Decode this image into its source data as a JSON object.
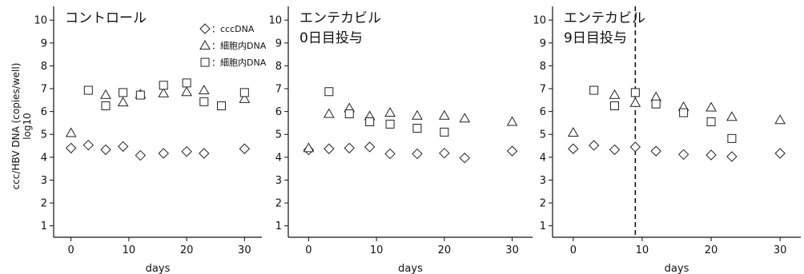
{
  "chart_data": {
    "ylabel_line1": "ccc/HBV DNA (copies/well)",
    "ylabel_line2": "log10",
    "legend": [
      {
        "marker": "diamond",
        "label": "：cccDNA"
      },
      {
        "marker": "triangle",
        "label": "：細胞内DNA"
      },
      {
        "marker": "square",
        "label": "：細胞内DNA"
      }
    ],
    "panels": [
      {
        "type": "scatter",
        "title_lines": [
          "コントロール"
        ],
        "xlabel": "days",
        "xlim": [
          -3,
          33
        ],
        "ylim": [
          0.5,
          10.6
        ],
        "xticks": [
          0,
          10,
          20,
          30
        ],
        "yticks": [
          1,
          2,
          3,
          4,
          5,
          6,
          7,
          8,
          9,
          10
        ],
        "vline": null,
        "series": [
          {
            "marker": "diamond",
            "points": [
              [
                0,
                4.4
              ],
              [
                3,
                4.53
              ],
              [
                6,
                4.33
              ],
              [
                9,
                4.47
              ],
              [
                12,
                4.08
              ],
              [
                16,
                4.17
              ],
              [
                20,
                4.25
              ],
              [
                23,
                4.17
              ],
              [
                30,
                4.37
              ]
            ]
          },
          {
            "marker": "triangle",
            "points": [
              [
                0,
                5.06
              ],
              [
                6,
                6.73
              ],
              [
                9,
                6.4
              ],
              [
                12,
                6.75
              ],
              [
                16,
                6.8
              ],
              [
                20,
                6.85
              ],
              [
                23,
                6.93
              ],
              [
                30,
                6.55
              ]
            ]
          },
          {
            "marker": "square",
            "points": [
              [
                3,
                6.93
              ],
              [
                6,
                6.25
              ],
              [
                9,
                6.83
              ],
              [
                12,
                6.72
              ],
              [
                16,
                7.15
              ],
              [
                20,
                7.25
              ],
              [
                23,
                6.43
              ],
              [
                26,
                6.25
              ],
              [
                30,
                6.83
              ]
            ]
          }
        ]
      },
      {
        "type": "scatter",
        "title_lines": [
          "エンテカビル",
          "0日目投与"
        ],
        "xlabel": "days",
        "xlim": [
          -3,
          33
        ],
        "ylim": [
          0.5,
          10.6
        ],
        "xticks": [
          0,
          10,
          20,
          30
        ],
        "yticks": [
          1,
          2,
          3,
          4,
          5,
          6,
          7,
          8,
          9,
          10
        ],
        "vline": null,
        "series": [
          {
            "marker": "diamond",
            "points": [
              [
                0,
                4.32
              ],
              [
                3,
                4.37
              ],
              [
                6,
                4.4
              ],
              [
                9,
                4.45
              ],
              [
                12,
                4.15
              ],
              [
                16,
                4.15
              ],
              [
                20,
                4.18
              ],
              [
                23,
                3.97
              ],
              [
                30,
                4.27
              ]
            ]
          },
          {
            "marker": "triangle",
            "points": [
              [
                0,
                4.4
              ],
              [
                3,
                5.9
              ],
              [
                6,
                6.15
              ],
              [
                9,
                5.8
              ],
              [
                12,
                5.95
              ],
              [
                16,
                5.82
              ],
              [
                20,
                5.82
              ],
              [
                23,
                5.7
              ],
              [
                30,
                5.55
              ]
            ]
          },
          {
            "marker": "square",
            "points": [
              [
                3,
                6.87
              ],
              [
                6,
                5.9
              ],
              [
                9,
                5.55
              ],
              [
                12,
                5.45
              ],
              [
                16,
                5.27
              ],
              [
                20,
                5.1
              ]
            ]
          }
        ]
      },
      {
        "type": "scatter",
        "title_lines": [
          "エンテカビル",
          "9日目投与"
        ],
        "xlabel": "days",
        "xlim": [
          -3,
          33
        ],
        "ylim": [
          0.5,
          10.6
        ],
        "xticks": [
          0,
          10,
          20,
          30
        ],
        "yticks": [
          1,
          2,
          3,
          4,
          5,
          6,
          7,
          8,
          9,
          10
        ],
        "vline": 9,
        "series": [
          {
            "marker": "diamond",
            "points": [
              [
                0,
                4.37
              ],
              [
                3,
                4.52
              ],
              [
                6,
                4.33
              ],
              [
                9,
                4.45
              ],
              [
                12,
                4.27
              ],
              [
                16,
                4.12
              ],
              [
                20,
                4.1
              ],
              [
                23,
                4.03
              ],
              [
                30,
                4.17
              ]
            ]
          },
          {
            "marker": "triangle",
            "points": [
              [
                0,
                5.08
              ],
              [
                6,
                6.73
              ],
              [
                9,
                6.38
              ],
              [
                12,
                6.63
              ],
              [
                16,
                6.2
              ],
              [
                20,
                6.18
              ],
              [
                23,
                5.77
              ],
              [
                30,
                5.63
              ]
            ]
          },
          {
            "marker": "square",
            "points": [
              [
                3,
                6.93
              ],
              [
                6,
                6.25
              ],
              [
                9,
                6.83
              ],
              [
                12,
                6.33
              ],
              [
                16,
                5.95
              ],
              [
                20,
                5.55
              ],
              [
                23,
                4.82
              ]
            ]
          }
        ]
      }
    ]
  }
}
